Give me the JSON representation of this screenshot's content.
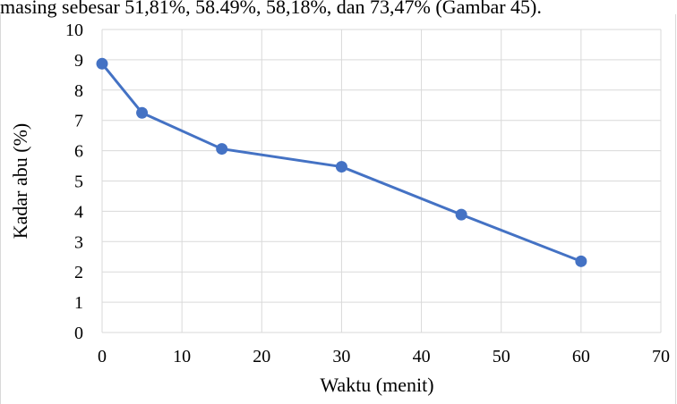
{
  "caption": "masing sebesar 51,81%, 58.49%, 58,18%, dan 73,47% (Gambar 45).",
  "chart_data": {
    "type": "line",
    "title": "",
    "xlabel": "Waktu (menit)",
    "ylabel": "Kadar abu (%)",
    "xlim": [
      0,
      70
    ],
    "ylim": [
      0,
      10
    ],
    "x_ticks": [
      0,
      10,
      20,
      30,
      40,
      50,
      60,
      70
    ],
    "y_ticks": [
      0,
      1,
      2,
      3,
      4,
      5,
      6,
      7,
      8,
      9,
      10
    ],
    "grid": true,
    "legend": "none",
    "series": [
      {
        "x": [
          0,
          5,
          15,
          30,
          45,
          60
        ],
        "y": [
          8.87,
          7.25,
          6.06,
          5.47,
          3.89,
          2.35
        ],
        "color": "#4472c4",
        "marker": "circle"
      }
    ]
  }
}
